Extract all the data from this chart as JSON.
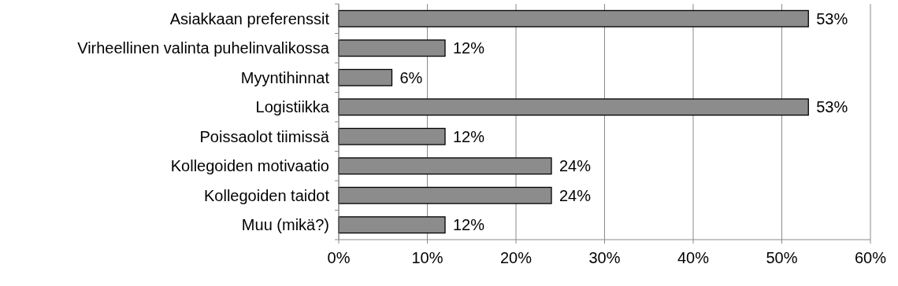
{
  "chart_data": {
    "type": "bar",
    "orientation": "horizontal",
    "categories": [
      "Asiakkaan preferenssit",
      "Virheellinen valinta puhelinvalikossa",
      "Myyntihinnat",
      "Logistiikka",
      "Poissaolot tiimissä",
      "Kollegoiden motivaatio",
      "Kollegoiden taidot",
      "Muu (mikä?)"
    ],
    "values": [
      53,
      12,
      6,
      53,
      12,
      24,
      24,
      12
    ],
    "value_labels": [
      "53%",
      "12%",
      "6%",
      "53%",
      "12%",
      "24%",
      "24%",
      "12%"
    ],
    "color": "#8c8c8c",
    "xlim": [
      0,
      60
    ],
    "xticks": [
      {
        "value": 0,
        "label": "0%"
      },
      {
        "value": 10,
        "label": "10%"
      },
      {
        "value": 20,
        "label": "20%"
      },
      {
        "value": 30,
        "label": "30%"
      },
      {
        "value": 40,
        "label": "40%"
      },
      {
        "value": 50,
        "label": "50%"
      },
      {
        "value": 60,
        "label": "60%"
      }
    ],
    "grid": "x"
  }
}
